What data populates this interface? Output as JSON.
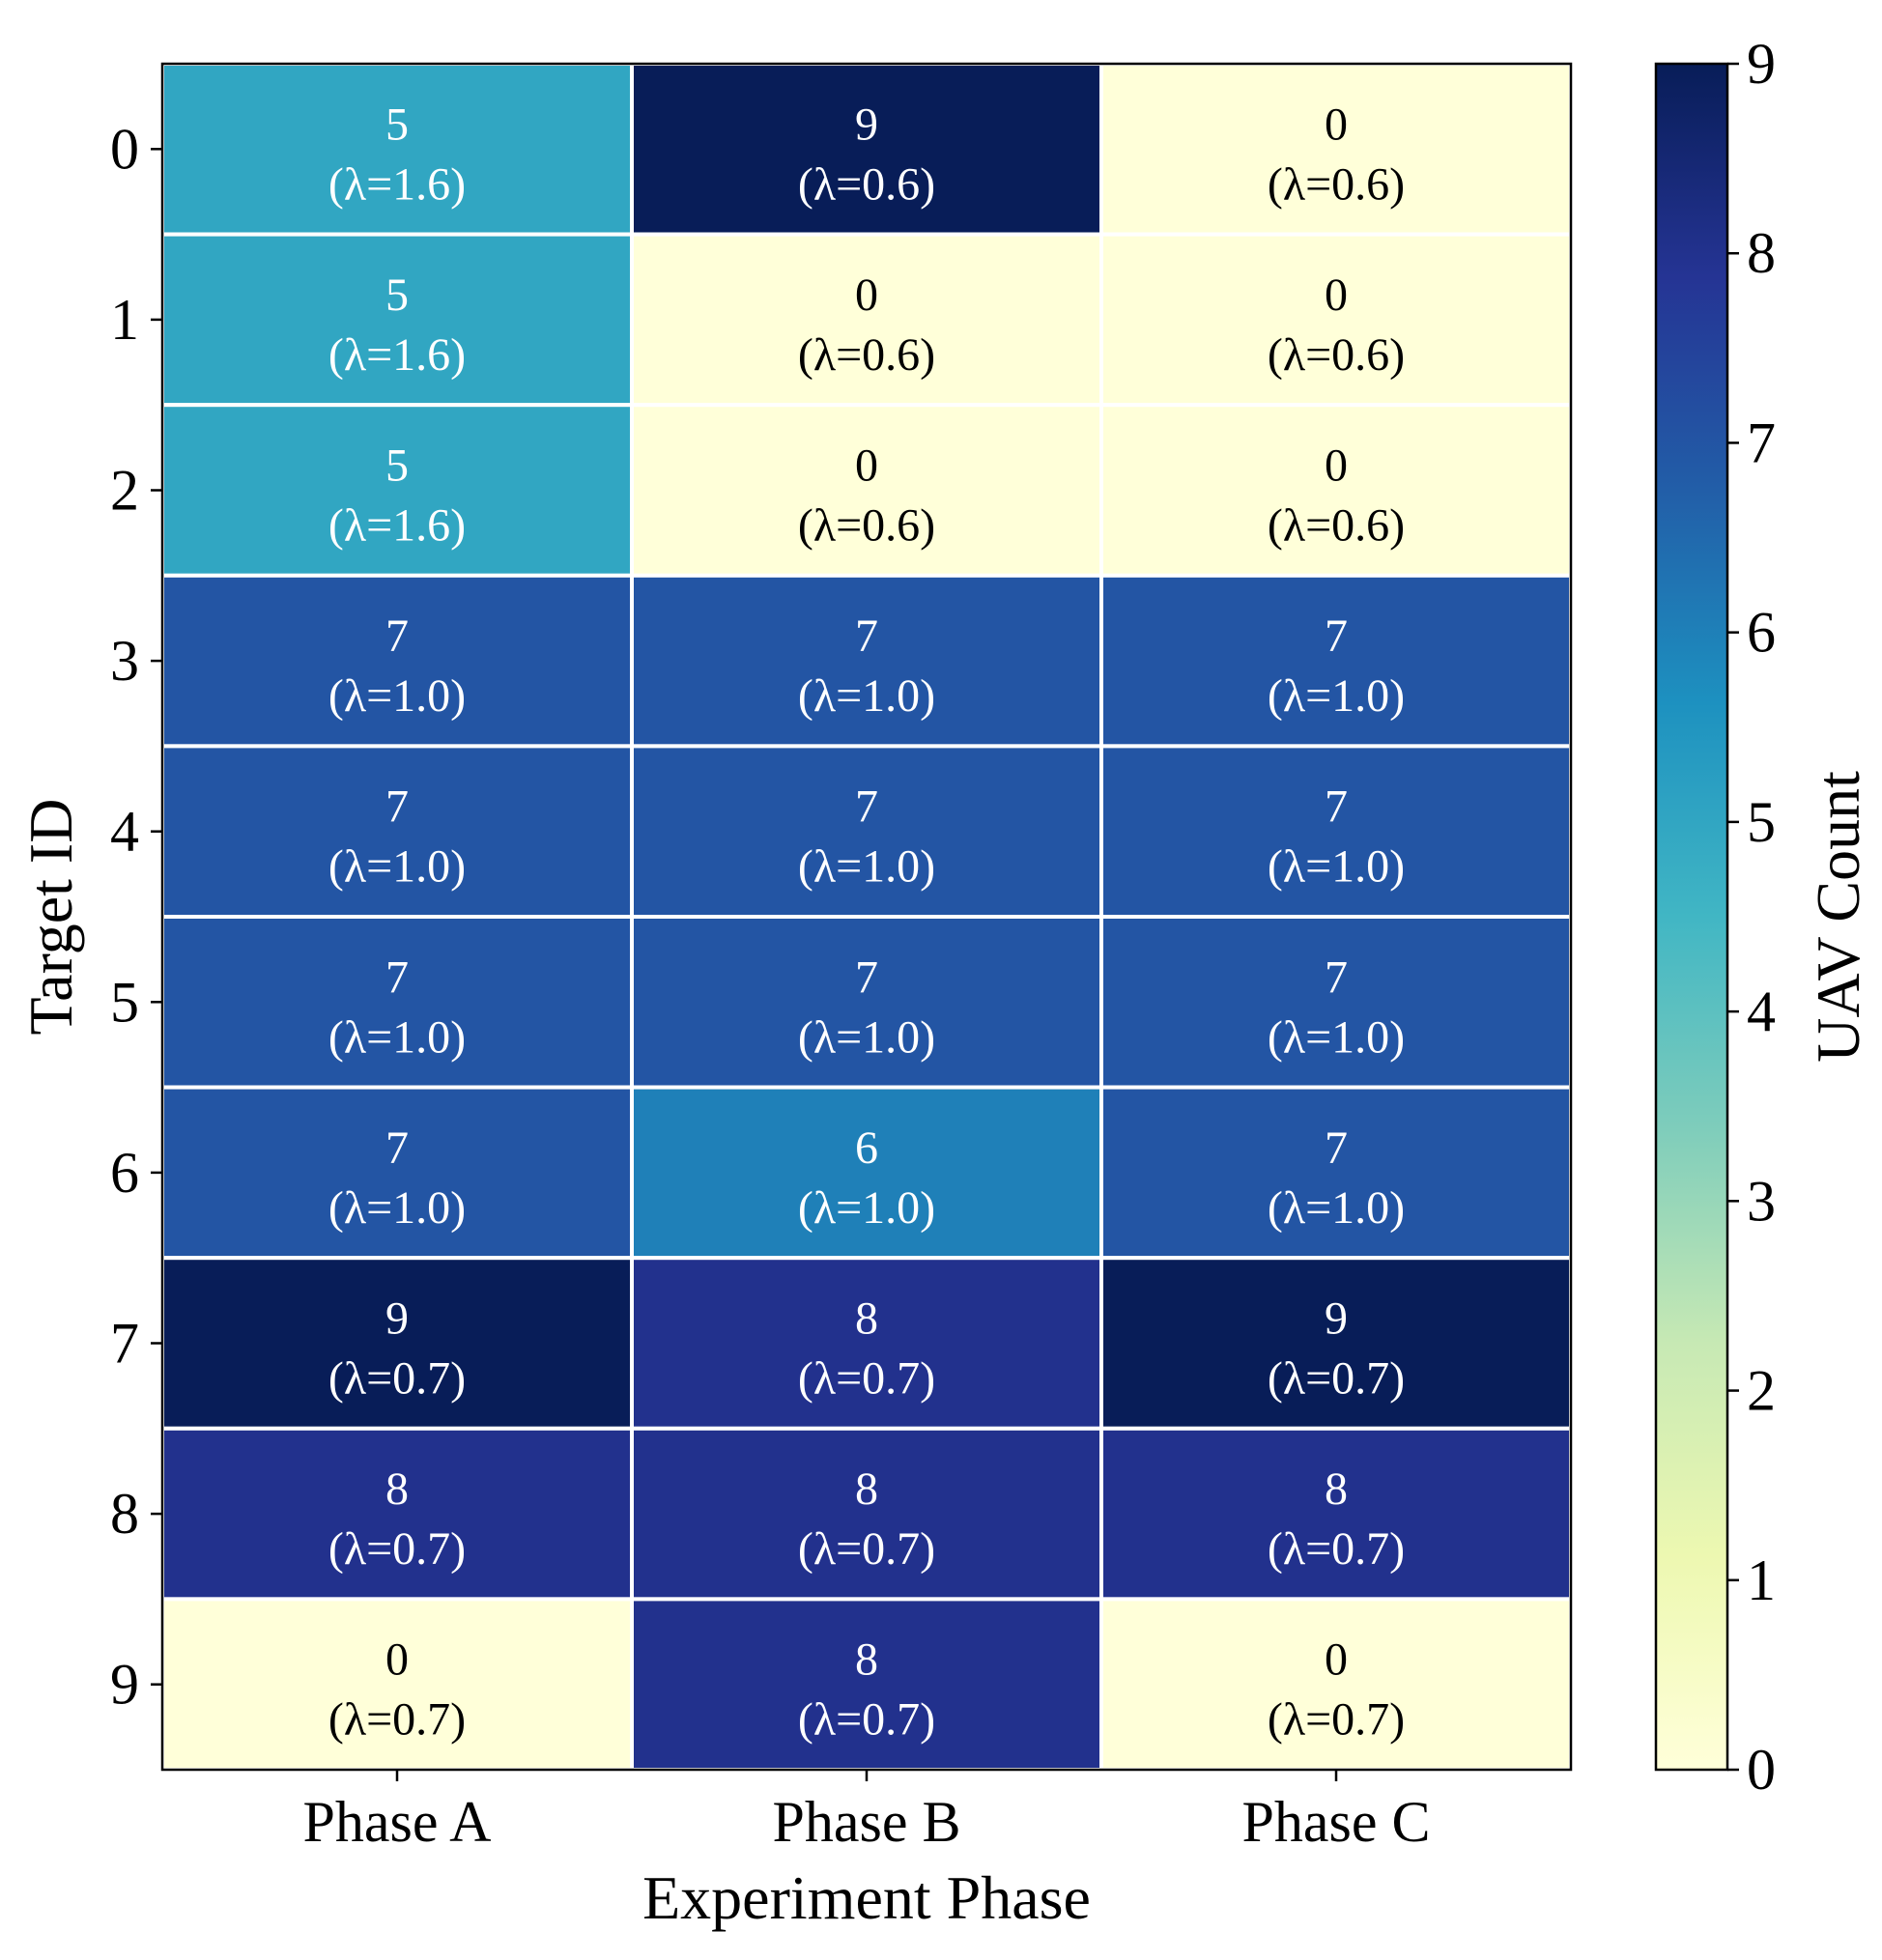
{
  "chart_data": {
    "type": "heatmap",
    "xlabel": "Experiment Phase",
    "ylabel": "Target ID",
    "x_categories": [
      "Phase A",
      "Phase B",
      "Phase C"
    ],
    "y_categories": [
      "0",
      "1",
      "2",
      "3",
      "4",
      "5",
      "6",
      "7",
      "8",
      "9"
    ],
    "values": [
      [
        5,
        9,
        0
      ],
      [
        5,
        0,
        0
      ],
      [
        5,
        0,
        0
      ],
      [
        7,
        7,
        7
      ],
      [
        7,
        7,
        7
      ],
      [
        7,
        7,
        7
      ],
      [
        7,
        6,
        7
      ],
      [
        9,
        8,
        9
      ],
      [
        8,
        8,
        8
      ],
      [
        0,
        8,
        0
      ]
    ],
    "cell_annotations": [
      [
        "(λ=1.6)",
        "(λ=0.6)",
        "(λ=0.6)"
      ],
      [
        "(λ=1.6)",
        "(λ=0.6)",
        "(λ=0.6)"
      ],
      [
        "(λ=1.6)",
        "(λ=0.6)",
        "(λ=0.6)"
      ],
      [
        "(λ=1.0)",
        "(λ=1.0)",
        "(λ=1.0)"
      ],
      [
        "(λ=1.0)",
        "(λ=1.0)",
        "(λ=1.0)"
      ],
      [
        "(λ=1.0)",
        "(λ=1.0)",
        "(λ=1.0)"
      ],
      [
        "(λ=1.0)",
        "(λ=1.0)",
        "(λ=1.0)"
      ],
      [
        "(λ=0.7)",
        "(λ=0.7)",
        "(λ=0.7)"
      ],
      [
        "(λ=0.7)",
        "(λ=0.7)",
        "(λ=0.7)"
      ],
      [
        "(λ=0.7)",
        "(λ=0.7)",
        "(λ=0.7)"
      ]
    ],
    "colorbar": {
      "label": "UAV Count",
      "range": [
        0,
        9
      ],
      "ticks": [
        "0",
        "1",
        "2",
        "3",
        "4",
        "5",
        "6",
        "7",
        "8",
        "9"
      ],
      "colormap": "YlGnBu",
      "stops": [
        "#ffffd9",
        "#edf8b1",
        "#c7e9b4",
        "#7fcdbb",
        "#41b6c4",
        "#1d91c0",
        "#225ea8",
        "#253494",
        "#081d58"
      ]
    },
    "text_colors": {
      "light": "#ffffff",
      "dark": "#000000"
    },
    "grid": "white cell separators"
  }
}
